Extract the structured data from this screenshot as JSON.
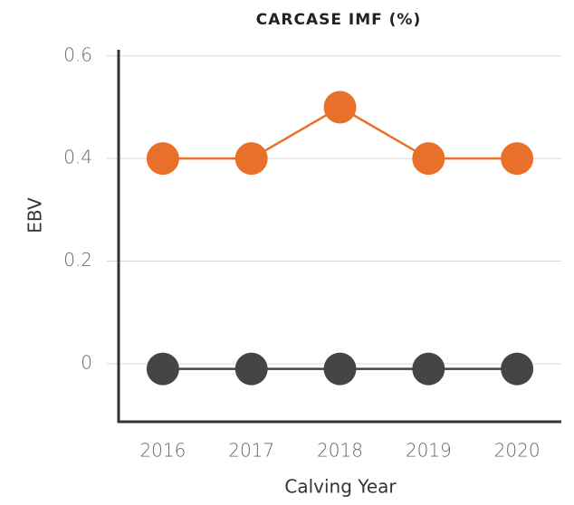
{
  "chart_data": {
    "type": "line",
    "title": "CARCASE IMF (%)",
    "x_label": "Calving Year",
    "y_label": "EBV",
    "categories": [
      "2016",
      "2017",
      "2018",
      "2019",
      "2020"
    ],
    "series": [
      {
        "color": "#e8702a",
        "values": [
          0.4,
          0.4,
          0.5,
          0.4,
          0.4
        ]
      },
      {
        "color": "#454547",
        "values": [
          -0.01,
          -0.01,
          -0.01,
          -0.01,
          -0.01
        ]
      }
    ],
    "ylim": [
      -0.113,
      0.612
    ],
    "yticks": [
      0,
      0.2,
      0.4,
      0.6
    ],
    "grid": true
  }
}
